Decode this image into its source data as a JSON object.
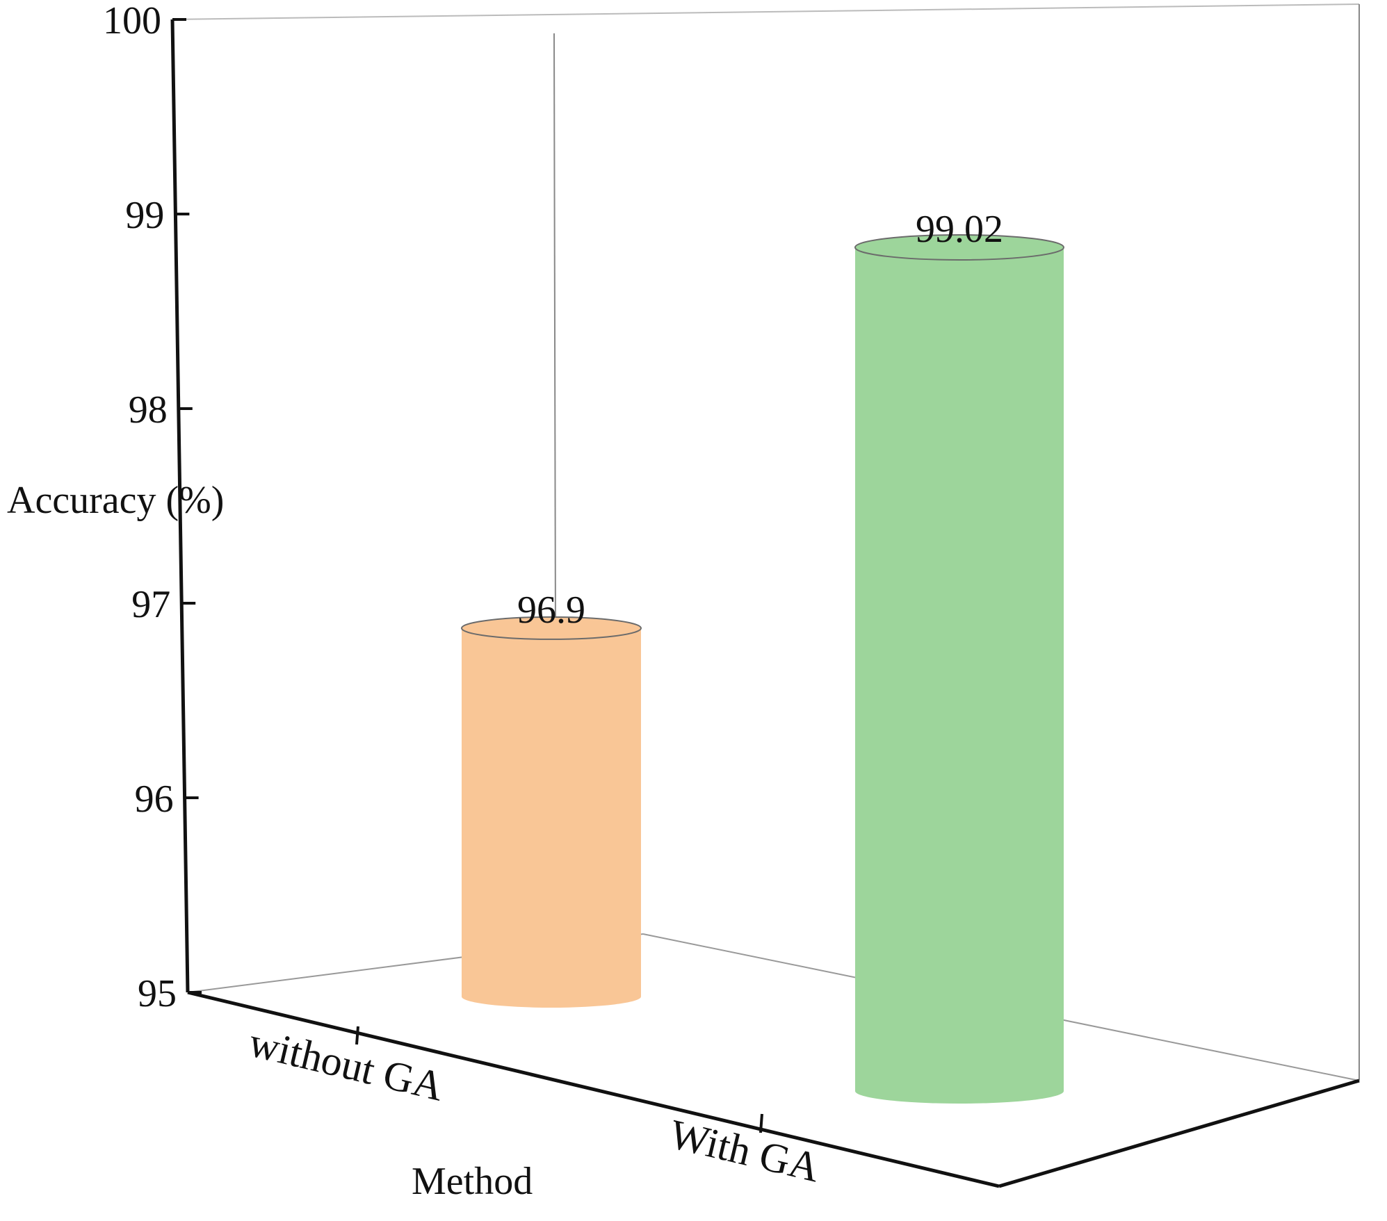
{
  "chart_data": {
    "type": "bar",
    "style": "3d-cylinder",
    "categories": [
      "without GA",
      "With GA"
    ],
    "values": [
      96.9,
      99.02
    ],
    "data_labels": [
      "96.9",
      "99.02"
    ],
    "colors": [
      "#f9c696",
      "#9dd59b"
    ],
    "ylabel": "Accuracy (%)",
    "xlabel": "Method",
    "ylim": [
      95,
      100
    ],
    "yticks": [
      "95",
      "96",
      "97",
      "98",
      "99",
      "100"
    ],
    "grid": false,
    "legend": "none"
  }
}
